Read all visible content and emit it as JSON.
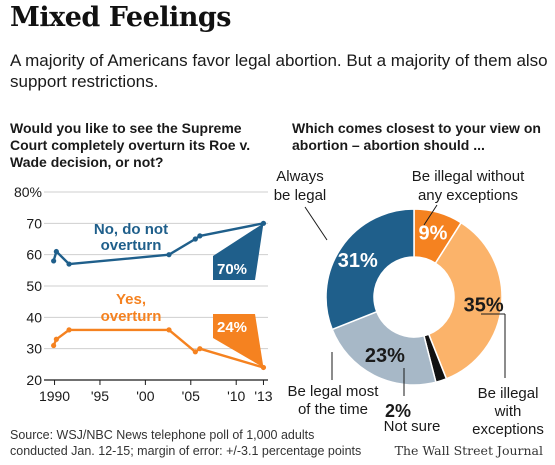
{
  "header": {
    "title": "Mixed Feelings",
    "subtitle": "A majority of Americans favor legal abortion. But a majority of them also support restrictions."
  },
  "footer": {
    "source": "Source: WSJ/NBC News telephone poll of 1,000 adults conducted Jan. 12-15; margin of error: +/-3.1 percentage points",
    "credit": "The Wall Street Journal"
  },
  "colors": {
    "blue": "#1f5f8b",
    "orange": "#f58220",
    "light_orange": "#fbb36a",
    "gray_blue": "#a7b8c7",
    "black": "#111111"
  },
  "chart_data": [
    {
      "type": "line",
      "title": "Would you like to see the Supreme Court completely overturn its Roe v. Wade decision, or not?",
      "ylim": [
        20,
        80
      ],
      "yticks": [
        20,
        30,
        40,
        50,
        60,
        70,
        80
      ],
      "ytick_labels": [
        "20",
        "30",
        "40",
        "50",
        "60",
        "70",
        "80%"
      ],
      "xlim": [
        1989.5,
        2013.5
      ],
      "xticks": [
        1990,
        1995,
        2000,
        2005,
        2010,
        2013
      ],
      "xtick_labels": [
        "1990",
        "'95",
        "'00",
        "'05",
        "'10",
        "'13"
      ],
      "grid": true,
      "series": [
        {
          "name": "No, do not overturn",
          "color": "#1f5f8b",
          "end_label": "70%",
          "points": [
            [
              1989.9,
              58
            ],
            [
              1990.2,
              61
            ],
            [
              1991.6,
              57
            ],
            [
              2002.6,
              60
            ],
            [
              2005.5,
              65
            ],
            [
              2006.0,
              66
            ],
            [
              2013.0,
              70
            ]
          ]
        },
        {
          "name": "Yes, overturn",
          "color": "#f58220",
          "end_label": "24%",
          "points": [
            [
              1989.9,
              31
            ],
            [
              1990.2,
              33
            ],
            [
              1991.6,
              36
            ],
            [
              2002.6,
              36
            ],
            [
              2005.5,
              29
            ],
            [
              2006.0,
              30
            ],
            [
              2013.0,
              24
            ]
          ]
        }
      ],
      "labels": {
        "no_line1": "No, do not",
        "no_line2": "overturn",
        "yes_line1": "Yes,",
        "yes_line2": "overturn"
      }
    },
    {
      "type": "pie",
      "title": "Which comes closest to your view on abortion – abortion should ...",
      "donut": true,
      "slices": [
        {
          "label": "Be illegal without any exceptions",
          "value": 9,
          "color": "#f58220",
          "value_label": "9%"
        },
        {
          "label": "Be illegal with exceptions",
          "value": 35,
          "color": "#fbb36a",
          "value_label": "35%"
        },
        {
          "label": "Not sure",
          "value": 2,
          "color": "#111111",
          "value_label": "2%"
        },
        {
          "label": "Be legal most of the time",
          "value": 23,
          "color": "#a7b8c7",
          "value_label": "23%"
        },
        {
          "label": "Always be legal",
          "value": 31,
          "color": "#1f5f8b",
          "value_label": "31%"
        }
      ],
      "callouts": {
        "always_1": "Always",
        "always_2": "be legal",
        "without_1": "Be illegal without",
        "without_2": "any exceptions",
        "with_1": "Be illegal",
        "with_2": "with",
        "with_3": "exceptions",
        "notsure": "Not sure",
        "most_1": "Be legal most",
        "most_2": "of the time"
      }
    }
  ]
}
